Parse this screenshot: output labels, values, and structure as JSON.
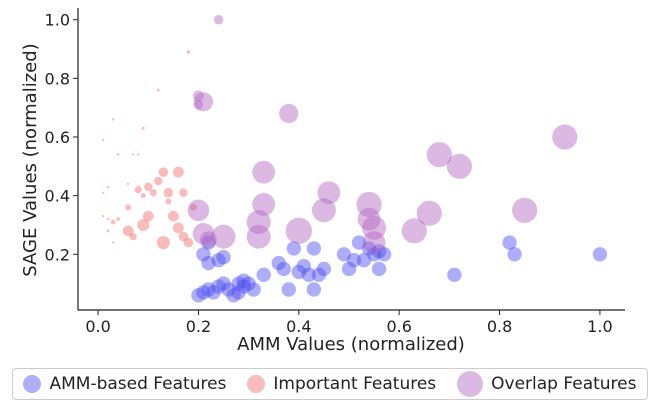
{
  "chart_data": {
    "type": "scatter",
    "title": "",
    "xlabel": "AMM Values (normalized)",
    "ylabel": "SAGE Values (normalized)",
    "xlim": [
      -0.04,
      1.05
    ],
    "ylim": [
      0.01,
      1.04
    ],
    "xticks": [
      "0.0",
      "0.2",
      "0.4",
      "0.6",
      "0.8",
      "1.0"
    ],
    "yticks": [
      "0.2",
      "0.4",
      "0.6",
      "0.8",
      "1.0"
    ],
    "grid": false,
    "legend_position": "bottom",
    "series": [
      {
        "name": "AMM-based Features",
        "color": "#4b4bf0",
        "points": [
          {
            "x": 0.2,
            "y": 0.06,
            "s": 0.6
          },
          {
            "x": 0.21,
            "y": 0.07,
            "s": 0.6
          },
          {
            "x": 0.22,
            "y": 0.08,
            "s": 0.6
          },
          {
            "x": 0.23,
            "y": 0.07,
            "s": 0.6
          },
          {
            "x": 0.24,
            "y": 0.09,
            "s": 0.6
          },
          {
            "x": 0.25,
            "y": 0.1,
            "s": 0.6
          },
          {
            "x": 0.26,
            "y": 0.08,
            "s": 0.6
          },
          {
            "x": 0.27,
            "y": 0.06,
            "s": 0.6
          },
          {
            "x": 0.28,
            "y": 0.07,
            "s": 0.6
          },
          {
            "x": 0.29,
            "y": 0.09,
            "s": 0.6
          },
          {
            "x": 0.29,
            "y": 0.11,
            "s": 0.6
          },
          {
            "x": 0.3,
            "y": 0.1,
            "s": 0.6
          },
          {
            "x": 0.31,
            "y": 0.08,
            "s": 0.6
          },
          {
            "x": 0.28,
            "y": 0.1,
            "s": 0.6
          },
          {
            "x": 0.21,
            "y": 0.2,
            "s": 0.6
          },
          {
            "x": 0.22,
            "y": 0.24,
            "s": 0.6
          },
          {
            "x": 0.22,
            "y": 0.17,
            "s": 0.6
          },
          {
            "x": 0.24,
            "y": 0.18,
            "s": 0.6
          },
          {
            "x": 0.25,
            "y": 0.19,
            "s": 0.6
          },
          {
            "x": 0.33,
            "y": 0.13,
            "s": 0.6
          },
          {
            "x": 0.36,
            "y": 0.17,
            "s": 0.6
          },
          {
            "x": 0.37,
            "y": 0.15,
            "s": 0.6
          },
          {
            "x": 0.38,
            "y": 0.08,
            "s": 0.6
          },
          {
            "x": 0.39,
            "y": 0.22,
            "s": 0.6
          },
          {
            "x": 0.4,
            "y": 0.14,
            "s": 0.6
          },
          {
            "x": 0.41,
            "y": 0.16,
            "s": 0.6
          },
          {
            "x": 0.42,
            "y": 0.13,
            "s": 0.6
          },
          {
            "x": 0.43,
            "y": 0.08,
            "s": 0.6
          },
          {
            "x": 0.44,
            "y": 0.13,
            "s": 0.6
          },
          {
            "x": 0.45,
            "y": 0.15,
            "s": 0.6
          },
          {
            "x": 0.43,
            "y": 0.22,
            "s": 0.6
          },
          {
            "x": 0.49,
            "y": 0.2,
            "s": 0.6
          },
          {
            "x": 0.5,
            "y": 0.15,
            "s": 0.6
          },
          {
            "x": 0.51,
            "y": 0.18,
            "s": 0.6
          },
          {
            "x": 0.52,
            "y": 0.24,
            "s": 0.6
          },
          {
            "x": 0.53,
            "y": 0.18,
            "s": 0.6
          },
          {
            "x": 0.54,
            "y": 0.22,
            "s": 0.6
          },
          {
            "x": 0.55,
            "y": 0.2,
            "s": 0.6
          },
          {
            "x": 0.56,
            "y": 0.21,
            "s": 0.6
          },
          {
            "x": 0.56,
            "y": 0.15,
            "s": 0.6
          },
          {
            "x": 0.57,
            "y": 0.2,
            "s": 0.6
          },
          {
            "x": 0.71,
            "y": 0.13,
            "s": 0.6
          },
          {
            "x": 0.82,
            "y": 0.24,
            "s": 0.6
          },
          {
            "x": 0.83,
            "y": 0.2,
            "s": 0.6
          },
          {
            "x": 1.0,
            "y": 0.2,
            "s": 0.6
          }
        ]
      },
      {
        "name": "Important Features",
        "color": "#f26b6b",
        "points": [
          {
            "x": 0.01,
            "y": 0.59,
            "s": 0.04
          },
          {
            "x": 0.01,
            "y": 0.41,
            "s": 0.04
          },
          {
            "x": 0.02,
            "y": 0.43,
            "s": 0.05
          },
          {
            "x": 0.01,
            "y": 0.33,
            "s": 0.06
          },
          {
            "x": 0.02,
            "y": 0.32,
            "s": 0.1
          },
          {
            "x": 0.02,
            "y": 0.28,
            "s": 0.12
          },
          {
            "x": 0.03,
            "y": 0.24,
            "s": 0.1
          },
          {
            "x": 0.03,
            "y": 0.31,
            "s": 0.2
          },
          {
            "x": 0.04,
            "y": 0.32,
            "s": 0.15
          },
          {
            "x": 0.03,
            "y": 0.66,
            "s": 0.04
          },
          {
            "x": 0.04,
            "y": 0.54,
            "s": 0.03
          },
          {
            "x": 0.06,
            "y": 0.44,
            "s": 0.06
          },
          {
            "x": 0.06,
            "y": 0.28,
            "s": 0.45
          },
          {
            "x": 0.07,
            "y": 0.26,
            "s": 0.3
          },
          {
            "x": 0.07,
            "y": 0.54,
            "s": 0.1
          },
          {
            "x": 0.08,
            "y": 0.54,
            "s": 0.1
          },
          {
            "x": 0.09,
            "y": 0.63,
            "s": 0.12
          },
          {
            "x": 0.06,
            "y": 0.36,
            "s": 0.25
          },
          {
            "x": 0.08,
            "y": 0.42,
            "s": 0.3
          },
          {
            "x": 0.09,
            "y": 0.4,
            "s": 0.2
          },
          {
            "x": 0.1,
            "y": 0.43,
            "s": 0.35
          },
          {
            "x": 0.11,
            "y": 0.41,
            "s": 0.3
          },
          {
            "x": 0.1,
            "y": 0.33,
            "s": 0.45
          },
          {
            "x": 0.09,
            "y": 0.3,
            "s": 0.5
          },
          {
            "x": 0.12,
            "y": 0.45,
            "s": 0.35
          },
          {
            "x": 0.12,
            "y": 0.76,
            "s": 0.12
          },
          {
            "x": 0.13,
            "y": 0.48,
            "s": 0.4
          },
          {
            "x": 0.14,
            "y": 0.41,
            "s": 0.4
          },
          {
            "x": 0.13,
            "y": 0.24,
            "s": 0.55
          },
          {
            "x": 0.15,
            "y": 0.33,
            "s": 0.45
          },
          {
            "x": 0.16,
            "y": 0.48,
            "s": 0.45
          },
          {
            "x": 0.16,
            "y": 0.29,
            "s": 0.45
          },
          {
            "x": 0.17,
            "y": 0.41,
            "s": 0.35
          },
          {
            "x": 0.17,
            "y": 0.26,
            "s": 0.4
          },
          {
            "x": 0.18,
            "y": 0.24,
            "s": 0.4
          },
          {
            "x": 0.18,
            "y": 0.89,
            "s": 0.15
          },
          {
            "x": 0.19,
            "y": 0.36,
            "s": 0.3
          },
          {
            "x": 0.14,
            "y": 0.38,
            "s": 0.25
          }
        ]
      },
      {
        "name": "Overlap Features",
        "color": "#b263c0",
        "points": [
          {
            "x": 0.24,
            "y": 1.0,
            "s": 0.4
          },
          {
            "x": 0.2,
            "y": 0.74,
            "s": 0.45
          },
          {
            "x": 0.21,
            "y": 0.72,
            "s": 0.8
          },
          {
            "x": 0.2,
            "y": 0.71,
            "s": 0.4
          },
          {
            "x": 0.38,
            "y": 0.68,
            "s": 0.8
          },
          {
            "x": 0.2,
            "y": 0.35,
            "s": 0.9
          },
          {
            "x": 0.21,
            "y": 0.27,
            "s": 0.9
          },
          {
            "x": 0.22,
            "y": 0.25,
            "s": 0.7
          },
          {
            "x": 0.25,
            "y": 0.26,
            "s": 1.0
          },
          {
            "x": 0.33,
            "y": 0.48,
            "s": 0.95
          },
          {
            "x": 0.33,
            "y": 0.37,
            "s": 0.95
          },
          {
            "x": 0.32,
            "y": 0.31,
            "s": 1.0
          },
          {
            "x": 0.32,
            "y": 0.26,
            "s": 1.0
          },
          {
            "x": 0.4,
            "y": 0.28,
            "s": 1.1
          },
          {
            "x": 0.45,
            "y": 0.35,
            "s": 1.0
          },
          {
            "x": 0.46,
            "y": 0.41,
            "s": 0.95
          },
          {
            "x": 0.54,
            "y": 0.37,
            "s": 1.05
          },
          {
            "x": 0.54,
            "y": 0.32,
            "s": 0.95
          },
          {
            "x": 0.55,
            "y": 0.29,
            "s": 1.0
          },
          {
            "x": 0.55,
            "y": 0.24,
            "s": 0.95
          },
          {
            "x": 0.63,
            "y": 0.28,
            "s": 1.05
          },
          {
            "x": 0.66,
            "y": 0.34,
            "s": 1.05
          },
          {
            "x": 0.68,
            "y": 0.54,
            "s": 1.05
          },
          {
            "x": 0.72,
            "y": 0.5,
            "s": 1.05
          },
          {
            "x": 0.85,
            "y": 0.35,
            "s": 1.05
          },
          {
            "x": 0.93,
            "y": 0.6,
            "s": 1.05
          }
        ]
      }
    ]
  }
}
